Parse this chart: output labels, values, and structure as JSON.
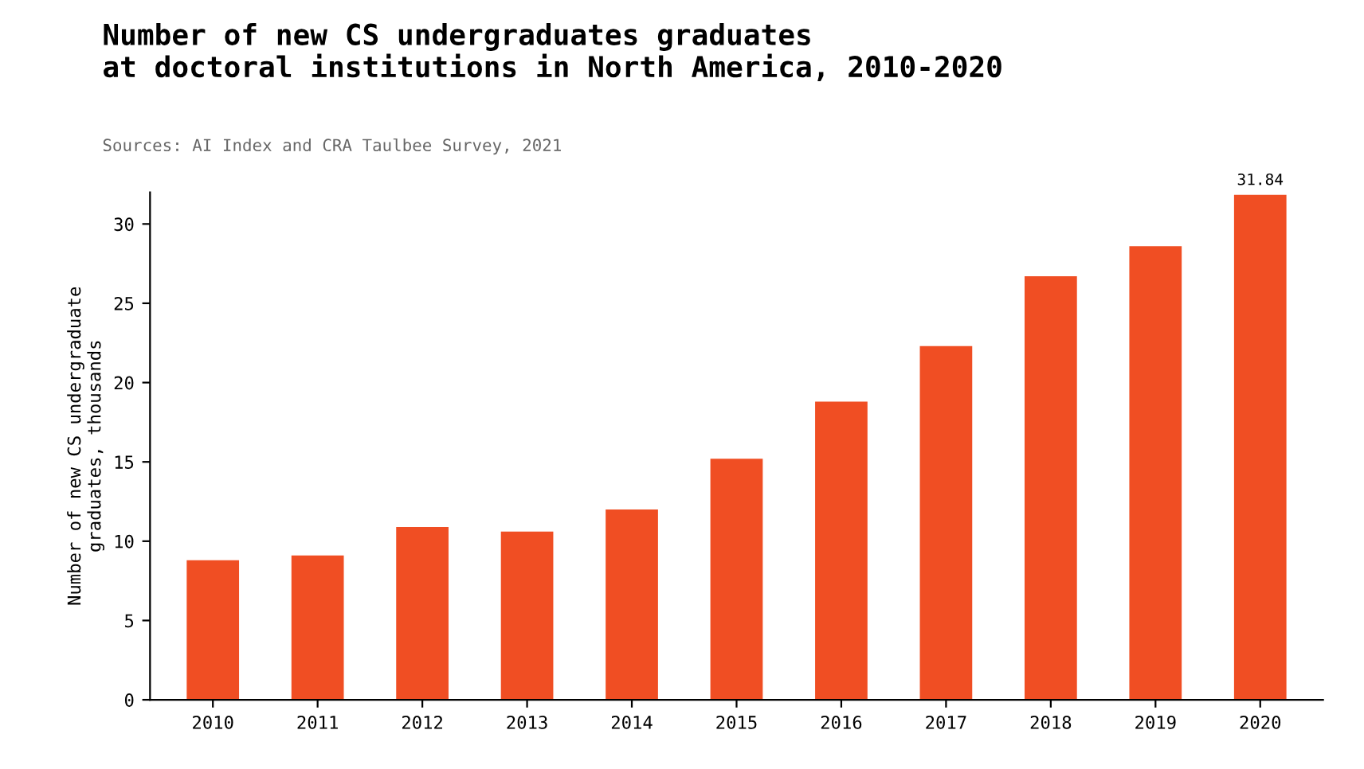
{
  "chart_data": {
    "type": "bar",
    "title": "Number of new CS undergraduates graduates\nat doctoral institutions in North America, 2010-2020",
    "subtitle": "Sources: AI Index and CRA Taulbee Survey, 2021",
    "ylabel": "Number of new CS undergraduate\ngraduates, thousands",
    "categories": [
      "2010",
      "2011",
      "2012",
      "2013",
      "2014",
      "2015",
      "2016",
      "2017",
      "2018",
      "2019",
      "2020"
    ],
    "values": [
      8.8,
      9.1,
      10.9,
      10.6,
      12.0,
      15.2,
      18.8,
      22.3,
      26.7,
      28.6,
      31.84
    ],
    "value_labels": [
      null,
      null,
      null,
      null,
      null,
      null,
      null,
      null,
      null,
      null,
      "31.84"
    ],
    "color": "#f04e23",
    "ylim": [
      0,
      32
    ],
    "yticks": [
      0,
      5,
      10,
      15,
      20,
      25,
      30
    ],
    "grid": false,
    "legend": false
  }
}
